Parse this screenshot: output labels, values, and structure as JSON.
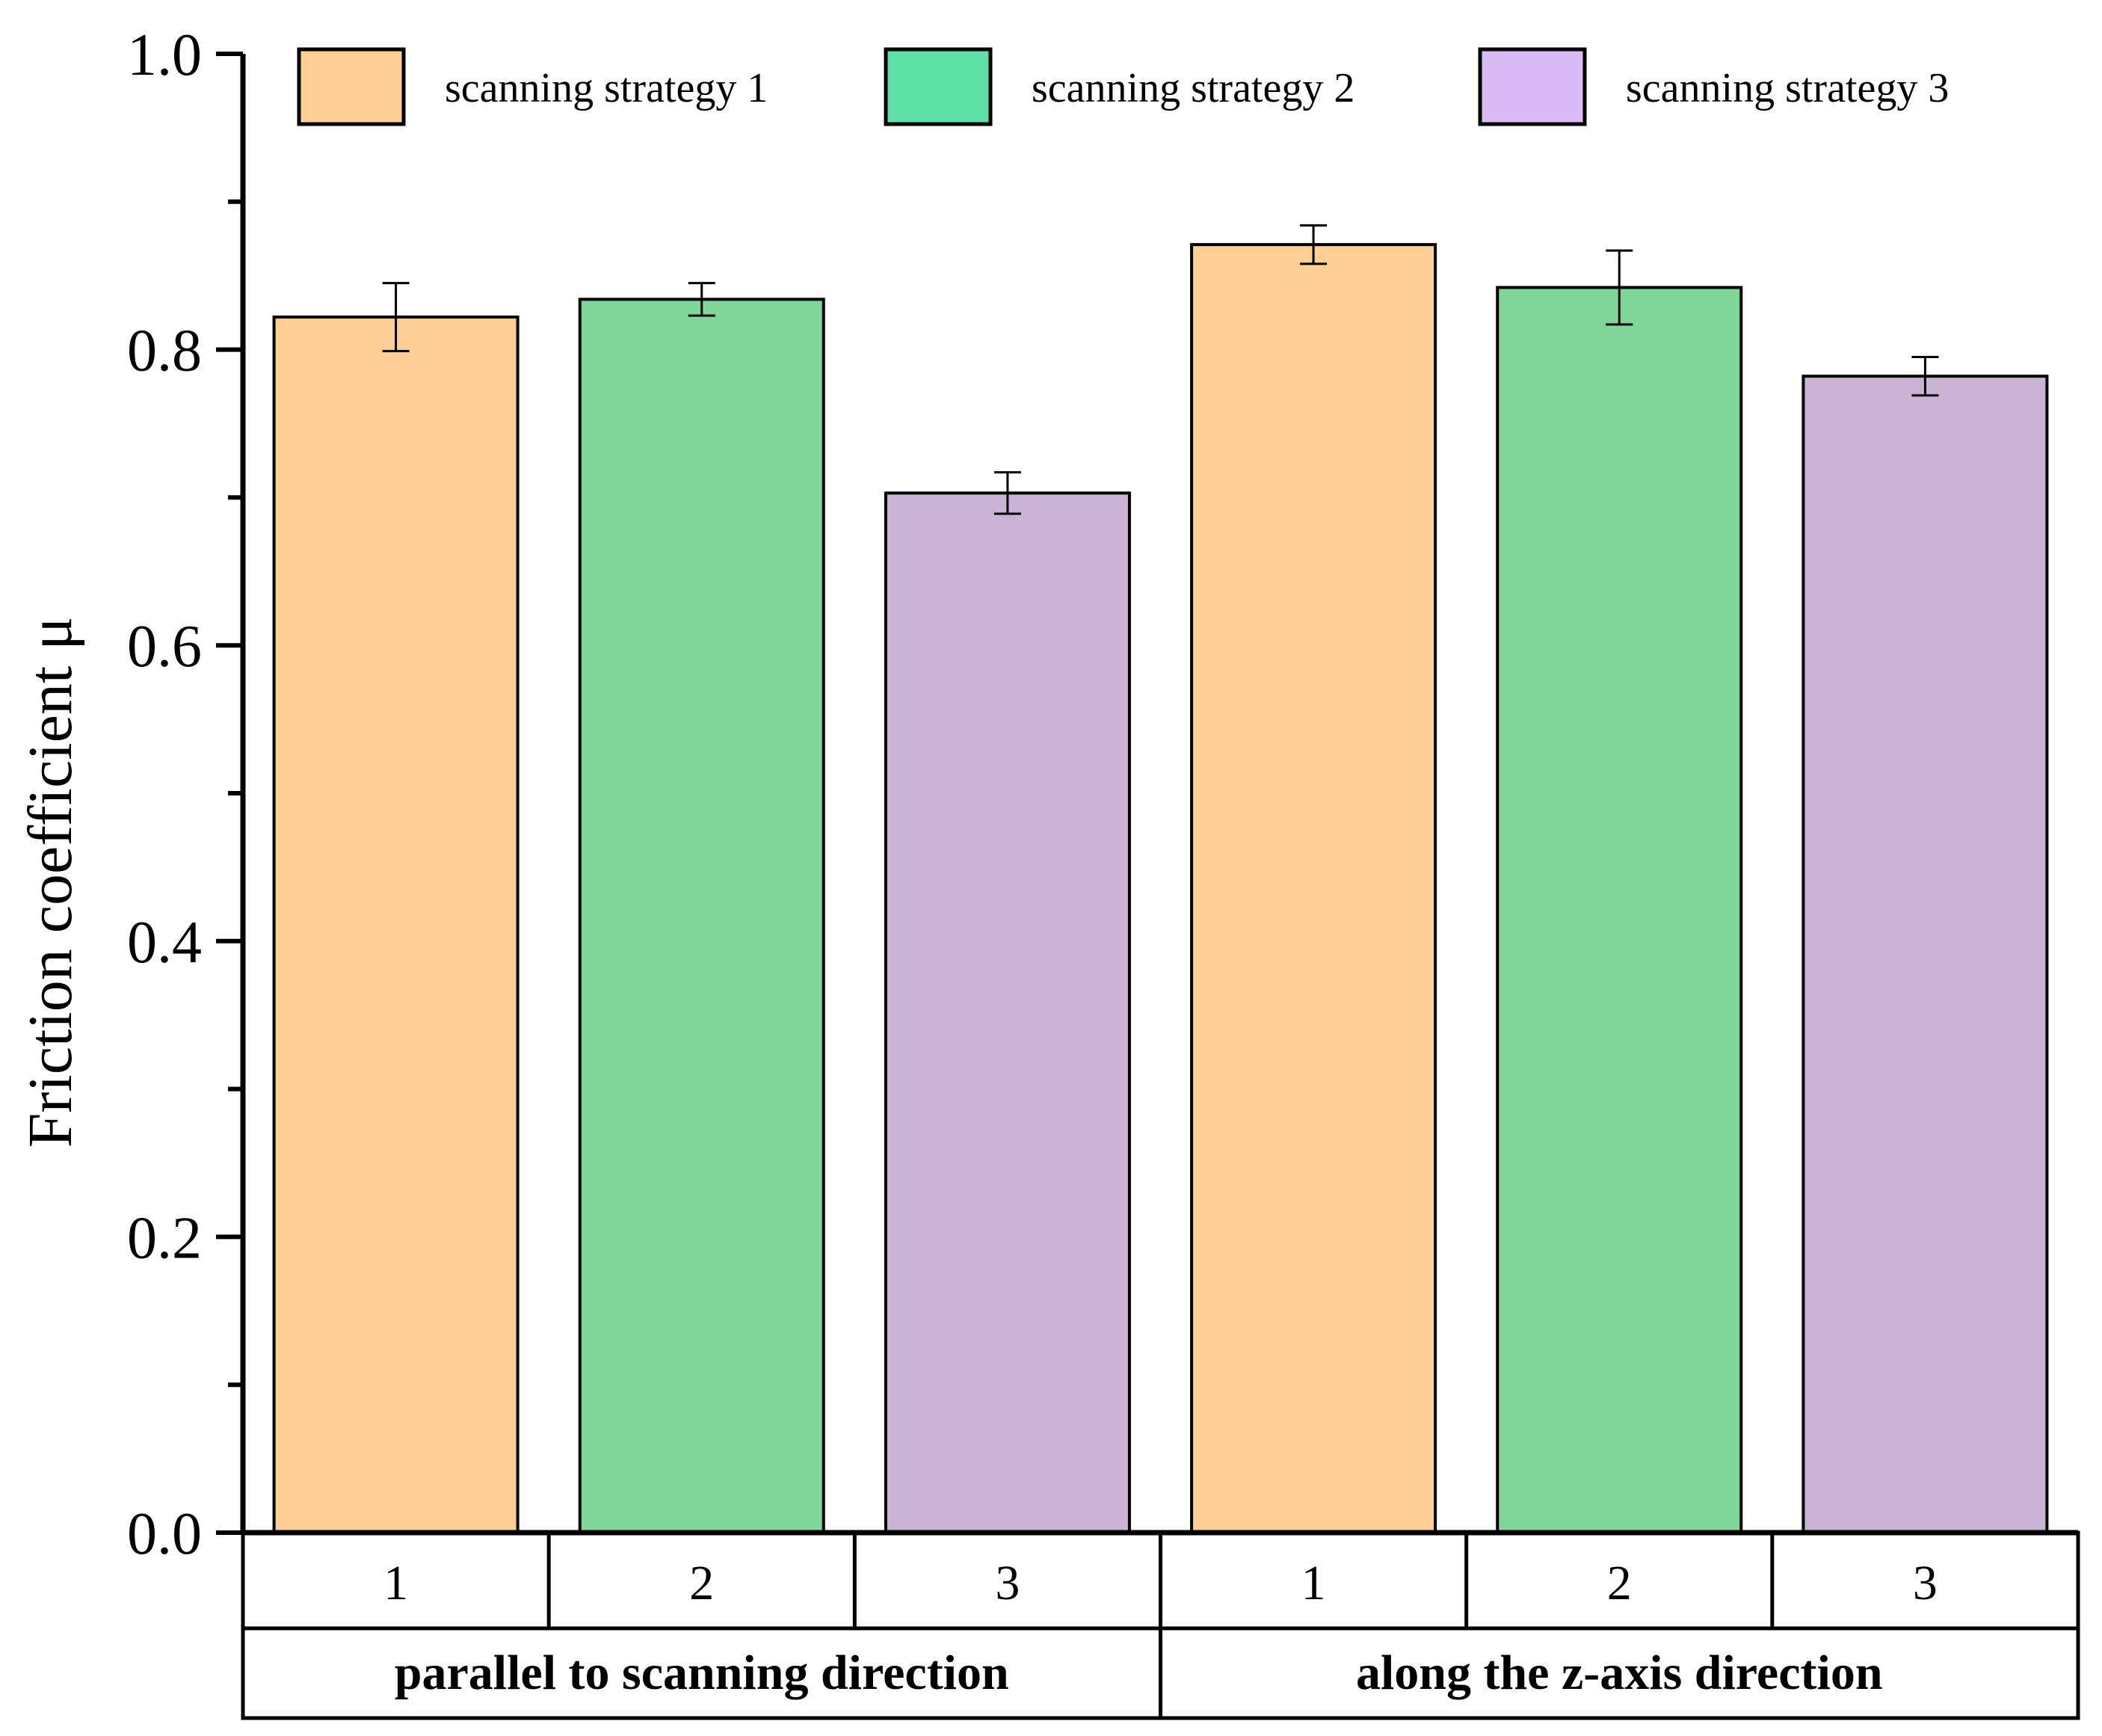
{
  "chart_data": {
    "type": "bar",
    "title": "",
    "xlabel": "",
    "ylabel": "Friction coefficient μ",
    "ylim": [
      0.0,
      1.0
    ],
    "yticks": [
      "0.0",
      "0.2",
      "0.4",
      "0.6",
      "0.8",
      "1.0"
    ],
    "grid": false,
    "legend_position": "top",
    "series": [
      {
        "name": "scanning strategy 1",
        "bar_color": "#ffcf96",
        "legend_color": "#ffcf96"
      },
      {
        "name": "scanning strategy 2",
        "bar_color": "#7fd699",
        "legend_color": "#5fe0a8"
      },
      {
        "name": "scanning strategy 3",
        "bar_color": "#cbb3d6",
        "legend_color": "#dcbaf5"
      }
    ],
    "bars": [
      {
        "category": "1",
        "group": 0,
        "series": 0,
        "value": 0.822,
        "error": 0.023
      },
      {
        "category": "2",
        "group": 0,
        "series": 1,
        "value": 0.834,
        "error": 0.011
      },
      {
        "category": "3",
        "group": 0,
        "series": 2,
        "value": 0.703,
        "error": 0.014
      },
      {
        "category": "1",
        "group": 1,
        "series": 0,
        "value": 0.871,
        "error": 0.013
      },
      {
        "category": "2",
        "group": 1,
        "series": 1,
        "value": 0.842,
        "error": 0.025
      },
      {
        "category": "3",
        "group": 1,
        "series": 2,
        "value": 0.782,
        "error": 0.013
      }
    ],
    "groups": [
      "parallel to scanning direction",
      "along the z-axis direction"
    ]
  }
}
